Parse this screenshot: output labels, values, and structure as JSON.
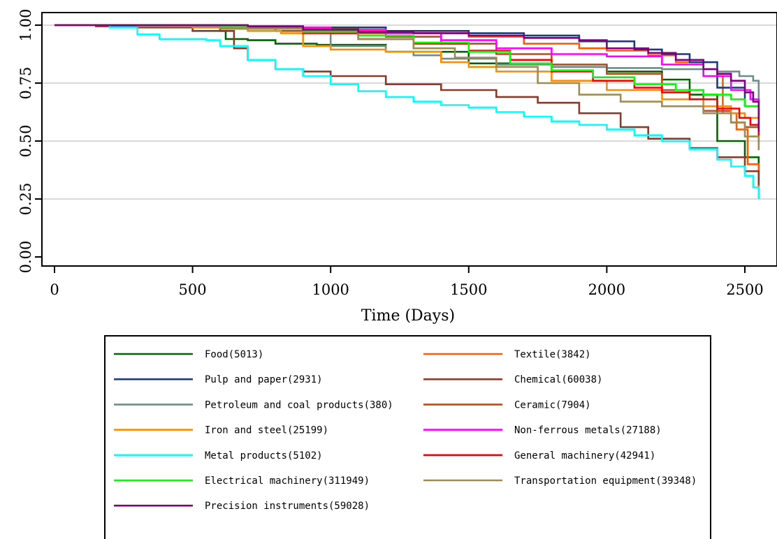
{
  "chart_data": {
    "type": "line",
    "title": "",
    "xlabel": "Time (Days)",
    "ylabel": "",
    "xlim": [
      0,
      2560
    ],
    "ylim": [
      0,
      1
    ],
    "xticks": [
      "0",
      "500",
      "1000",
      "1500",
      "2000",
      "2500"
    ],
    "yticks": [
      "0.00",
      "0.25",
      "0.50",
      "0.75",
      "1.00"
    ],
    "grid": "horizontal",
    "legend_position": "bottom",
    "series": [
      {
        "name": "Food(5013)",
        "color": "#006400",
        "points": [
          [
            0,
            1
          ],
          [
            250,
            0.995
          ],
          [
            500,
            0.99
          ],
          [
            600,
            0.975
          ],
          [
            620,
            0.94
          ],
          [
            700,
            0.935
          ],
          [
            800,
            0.92
          ],
          [
            950,
            0.915
          ],
          [
            1200,
            0.885
          ],
          [
            1500,
            0.835
          ],
          [
            1800,
            0.82
          ],
          [
            2000,
            0.8
          ],
          [
            2200,
            0.765
          ],
          [
            2300,
            0.7
          ],
          [
            2400,
            0.5
          ],
          [
            2500,
            0.43
          ],
          [
            2550,
            0.33
          ]
        ]
      },
      {
        "name": "Textile(3842)",
        "color": "#ff5a00",
        "points": [
          [
            0,
            1
          ],
          [
            400,
            1
          ],
          [
            700,
            0.99
          ],
          [
            900,
            0.985
          ],
          [
            1100,
            0.975
          ],
          [
            1300,
            0.965
          ],
          [
            1500,
            0.95
          ],
          [
            1700,
            0.92
          ],
          [
            1900,
            0.9
          ],
          [
            2000,
            0.89
          ],
          [
            2150,
            0.87
          ],
          [
            2250,
            0.84
          ],
          [
            2350,
            0.78
          ],
          [
            2420,
            0.62
          ],
          [
            2470,
            0.55
          ],
          [
            2510,
            0.4
          ],
          [
            2550,
            0.3
          ]
        ]
      },
      {
        "name": "Pulp and paper(2931)",
        "color": "#1f3a7a",
        "points": [
          [
            0,
            1
          ],
          [
            600,
            0.995
          ],
          [
            900,
            0.99
          ],
          [
            1200,
            0.975
          ],
          [
            1500,
            0.965
          ],
          [
            1700,
            0.955
          ],
          [
            1900,
            0.93
          ],
          [
            2100,
            0.895
          ],
          [
            2200,
            0.875
          ],
          [
            2300,
            0.84
          ],
          [
            2400,
            0.73
          ],
          [
            2500,
            0.65
          ],
          [
            2550,
            0.6
          ]
        ]
      },
      {
        "name": "Chemical(60038)",
        "color": "#8b3a2a",
        "points": [
          [
            0,
            1
          ],
          [
            150,
            0.995
          ],
          [
            300,
            0.99
          ],
          [
            500,
            0.975
          ],
          [
            650,
            0.9
          ],
          [
            700,
            0.85
          ],
          [
            800,
            0.81
          ],
          [
            900,
            0.8
          ],
          [
            1000,
            0.78
          ],
          [
            1200,
            0.745
          ],
          [
            1400,
            0.72
          ],
          [
            1600,
            0.69
          ],
          [
            1750,
            0.665
          ],
          [
            1900,
            0.62
          ],
          [
            2050,
            0.56
          ],
          [
            2150,
            0.51
          ],
          [
            2300,
            0.47
          ],
          [
            2400,
            0.43
          ],
          [
            2500,
            0.37
          ],
          [
            2550,
            0.31
          ]
        ]
      },
      {
        "name": "Petroleum and coal products(380)",
        "color": "#6f8c88",
        "points": [
          [
            0,
            1
          ],
          [
            700,
            0.995
          ],
          [
            900,
            0.97
          ],
          [
            1000,
            0.91
          ],
          [
            1200,
            0.885
          ],
          [
            1300,
            0.87
          ],
          [
            1400,
            0.855
          ],
          [
            1600,
            0.83
          ],
          [
            1800,
            0.82
          ],
          [
            2000,
            0.815
          ],
          [
            2200,
            0.81
          ],
          [
            2400,
            0.8
          ],
          [
            2480,
            0.78
          ],
          [
            2530,
            0.76
          ],
          [
            2550,
            0.66
          ]
        ]
      },
      {
        "name": "Ceramic(7904)",
        "color": "#b05020",
        "points": [
          [
            0,
            1
          ],
          [
            300,
            0.995
          ],
          [
            600,
            0.985
          ],
          [
            800,
            0.975
          ],
          [
            1000,
            0.965
          ],
          [
            1200,
            0.95
          ],
          [
            1400,
            0.92
          ],
          [
            1600,
            0.875
          ],
          [
            1800,
            0.83
          ],
          [
            2000,
            0.79
          ],
          [
            2200,
            0.72
          ],
          [
            2350,
            0.63
          ],
          [
            2450,
            0.58
          ],
          [
            2500,
            0.56
          ],
          [
            2550,
            0.55
          ]
        ]
      },
      {
        "name": "Iron and steel(25199)",
        "color": "#ff8c00",
        "points": [
          [
            0,
            1
          ],
          [
            500,
            0.99
          ],
          [
            700,
            0.975
          ],
          [
            820,
            0.965
          ],
          [
            900,
            0.91
          ],
          [
            1000,
            0.895
          ],
          [
            1200,
            0.885
          ],
          [
            1400,
            0.84
          ],
          [
            1500,
            0.82
          ],
          [
            1600,
            0.8
          ],
          [
            1800,
            0.76
          ],
          [
            2000,
            0.72
          ],
          [
            2200,
            0.68
          ],
          [
            2350,
            0.65
          ],
          [
            2450,
            0.62
          ],
          [
            2500,
            0.6
          ],
          [
            2550,
            0.56
          ]
        ]
      },
      {
        "name": "Non-ferrous metals(27188)",
        "color": "#ff00ff",
        "points": [
          [
            0,
            1
          ],
          [
            400,
            0.995
          ],
          [
            700,
            0.99
          ],
          [
            1000,
            0.98
          ],
          [
            1200,
            0.965
          ],
          [
            1400,
            0.935
          ],
          [
            1600,
            0.9
          ],
          [
            1800,
            0.875
          ],
          [
            2000,
            0.865
          ],
          [
            2200,
            0.83
          ],
          [
            2350,
            0.78
          ],
          [
            2450,
            0.72
          ],
          [
            2520,
            0.68
          ],
          [
            2550,
            0.61
          ]
        ]
      },
      {
        "name": "Metal products(5102)",
        "color": "#00ffff",
        "points": [
          [
            0,
            1
          ],
          [
            140,
            1
          ],
          [
            200,
            0.99
          ],
          [
            300,
            0.96
          ],
          [
            380,
            0.94
          ],
          [
            550,
            0.935
          ],
          [
            600,
            0.91
          ],
          [
            700,
            0.85
          ],
          [
            800,
            0.81
          ],
          [
            900,
            0.78
          ],
          [
            1000,
            0.745
          ],
          [
            1100,
            0.715
          ],
          [
            1200,
            0.69
          ],
          [
            1300,
            0.67
          ],
          [
            1400,
            0.655
          ],
          [
            1500,
            0.645
          ],
          [
            1600,
            0.625
          ],
          [
            1700,
            0.605
          ],
          [
            1800,
            0.585
          ],
          [
            1900,
            0.57
          ],
          [
            2000,
            0.55
          ],
          [
            2100,
            0.525
          ],
          [
            2200,
            0.5
          ],
          [
            2300,
            0.465
          ],
          [
            2400,
            0.42
          ],
          [
            2450,
            0.39
          ],
          [
            2500,
            0.35
          ],
          [
            2530,
            0.3
          ],
          [
            2550,
            0.25
          ]
        ]
      },
      {
        "name": "General machinery(42941)",
        "color": "#ff0000",
        "points": [
          [
            0,
            1
          ],
          [
            300,
            0.995
          ],
          [
            600,
            0.985
          ],
          [
            900,
            0.965
          ],
          [
            1100,
            0.94
          ],
          [
            1300,
            0.92
          ],
          [
            1500,
            0.89
          ],
          [
            1650,
            0.85
          ],
          [
            1800,
            0.8
          ],
          [
            1950,
            0.76
          ],
          [
            2100,
            0.73
          ],
          [
            2200,
            0.71
          ],
          [
            2300,
            0.68
          ],
          [
            2400,
            0.64
          ],
          [
            2480,
            0.6
          ],
          [
            2520,
            0.57
          ],
          [
            2550,
            0.49
          ]
        ]
      },
      {
        "name": "Electrical machinery(311949)",
        "color": "#00ff00",
        "points": [
          [
            0,
            1
          ],
          [
            400,
            0.995
          ],
          [
            700,
            0.985
          ],
          [
            900,
            0.975
          ],
          [
            1100,
            0.955
          ],
          [
            1300,
            0.925
          ],
          [
            1500,
            0.885
          ],
          [
            1650,
            0.835
          ],
          [
            1800,
            0.805
          ],
          [
            1950,
            0.775
          ],
          [
            2100,
            0.745
          ],
          [
            2250,
            0.72
          ],
          [
            2350,
            0.7
          ],
          [
            2450,
            0.68
          ],
          [
            2500,
            0.65
          ],
          [
            2550,
            0.6
          ]
        ]
      },
      {
        "name": "Transportation equipment(39348)",
        "color": "#a08c50",
        "points": [
          [
            0,
            1
          ],
          [
            300,
            0.995
          ],
          [
            600,
            0.985
          ],
          [
            900,
            0.97
          ],
          [
            1100,
            0.94
          ],
          [
            1300,
            0.9
          ],
          [
            1450,
            0.86
          ],
          [
            1600,
            0.82
          ],
          [
            1750,
            0.75
          ],
          [
            1900,
            0.7
          ],
          [
            2050,
            0.67
          ],
          [
            2200,
            0.65
          ],
          [
            2350,
            0.62
          ],
          [
            2450,
            0.58
          ],
          [
            2500,
            0.52
          ],
          [
            2550,
            0.46
          ]
        ]
      },
      {
        "name": "Precision instruments(59028)",
        "color": "#800080",
        "points": [
          [
            0,
            1
          ],
          [
            700,
            0.995
          ],
          [
            900,
            0.98
          ],
          [
            1100,
            0.97
          ],
          [
            1300,
            0.965
          ],
          [
            1500,
            0.955
          ],
          [
            1700,
            0.945
          ],
          [
            1900,
            0.935
          ],
          [
            2000,
            0.9
          ],
          [
            2150,
            0.88
          ],
          [
            2250,
            0.85
          ],
          [
            2350,
            0.81
          ],
          [
            2400,
            0.79
          ],
          [
            2450,
            0.76
          ],
          [
            2500,
            0.71
          ],
          [
            2530,
            0.67
          ],
          [
            2550,
            0.54
          ]
        ]
      }
    ]
  }
}
